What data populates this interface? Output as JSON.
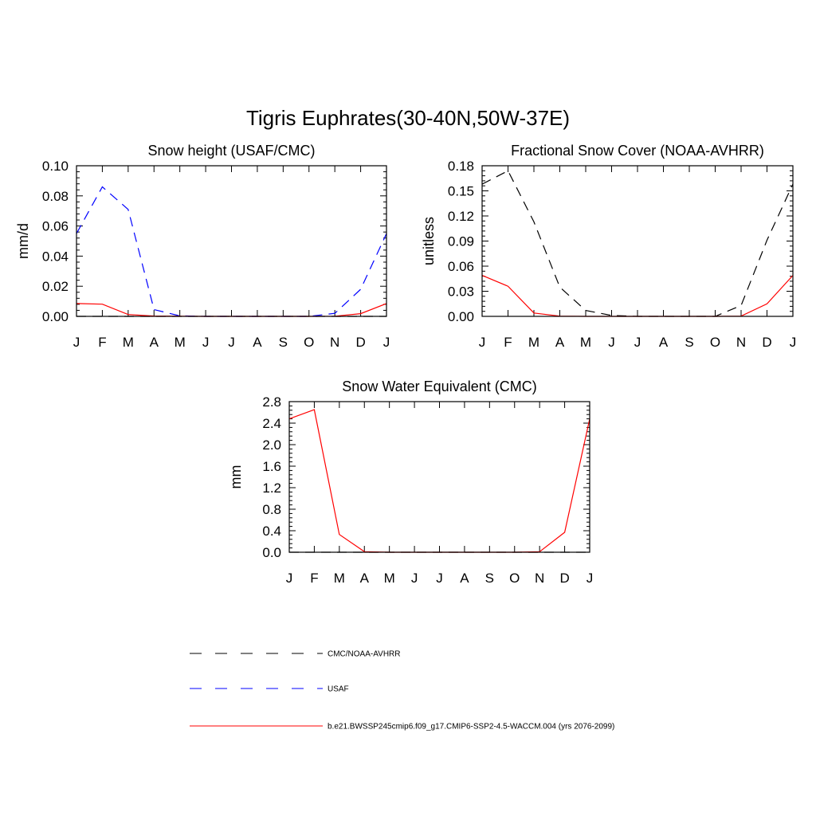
{
  "figure": {
    "title": "Tigris Euphrates(30-40N,50W-37E)"
  },
  "styles": {
    "CMC/NOAA-AVHRR": {
      "color": "#000000",
      "dash": "dashed"
    },
    "USAF": {
      "color": "#0000ff",
      "dash": "dashed"
    },
    "model": {
      "color": "#ff0000",
      "dash": "solid"
    }
  },
  "legend": {
    "placement": "bottom-center",
    "entries": [
      {
        "key": "CMC/NOAA-AVHRR",
        "label": "CMC/NOAA-AVHRR"
      },
      {
        "key": "USAF",
        "label": "USAF"
      },
      {
        "key": "model",
        "label": "b.e21.BWSSP245cmip6.f09_g17.CMIP6-SSP2-4.5-WACCM.004 (yrs 2076-2099)"
      }
    ]
  },
  "chart_data": [
    {
      "type": "line",
      "title": "Snow height (USAF/CMC)",
      "ylabel": "mm/d",
      "xlabel": "",
      "categories": [
        "J",
        "F",
        "M",
        "A",
        "M",
        "J",
        "J",
        "A",
        "S",
        "O",
        "N",
        "D",
        "J"
      ],
      "ylim": [
        0,
        0.1
      ],
      "yticks": [
        0,
        0.02,
        0.04,
        0.06,
        0.08,
        0.1
      ],
      "ytick_labels": [
        "0.00",
        "0.02",
        "0.04",
        "0.06",
        "0.08",
        "0.10"
      ],
      "grid": false,
      "series": [
        {
          "key": "CMC/NOAA-AVHRR",
          "values": [
            0,
            0,
            0,
            0,
            0,
            0,
            0,
            0,
            0,
            0,
            0,
            0,
            0
          ]
        },
        {
          "key": "USAF",
          "values": [
            0.055,
            0.086,
            0.071,
            0.0045,
            0.0003,
            0,
            0,
            0,
            0,
            0,
            0.002,
            0.018,
            0.055
          ]
        },
        {
          "key": "model",
          "values": [
            0.0085,
            0.0081,
            0.0012,
            0.0002,
            0.0001,
            0,
            0,
            0,
            0,
            0,
            0.0001,
            0.0018,
            0.0085
          ]
        }
      ]
    },
    {
      "type": "line",
      "title": "Fractional Snow Cover (NOAA-AVHRR)",
      "ylabel": "unitless",
      "xlabel": "",
      "categories": [
        "J",
        "F",
        "M",
        "A",
        "M",
        "J",
        "J",
        "A",
        "S",
        "O",
        "N",
        "D",
        "J"
      ],
      "ylim": [
        0,
        0.18
      ],
      "yticks": [
        0,
        0.03,
        0.06,
        0.09,
        0.12,
        0.15,
        0.18
      ],
      "ytick_labels": [
        "0.00",
        "0.03",
        "0.06",
        "0.09",
        "0.12",
        "0.15",
        "0.18"
      ],
      "grid": false,
      "series": [
        {
          "key": "CMC/NOAA-AVHRR",
          "values": [
            0.158,
            0.174,
            0.113,
            0.035,
            0.007,
            0.001,
            0,
            0,
            0,
            0,
            0.013,
            0.091,
            0.158
          ]
        },
        {
          "key": "model",
          "values": [
            0.049,
            0.036,
            0.004,
            0.0003,
            0,
            0,
            0,
            0,
            0,
            0,
            0.0003,
            0.015,
            0.049
          ]
        }
      ]
    },
    {
      "type": "line",
      "title": "Snow Water Equivalent (CMC)",
      "ylabel": "mm",
      "xlabel": "",
      "categories": [
        "J",
        "F",
        "M",
        "A",
        "M",
        "J",
        "J",
        "A",
        "S",
        "O",
        "N",
        "D",
        "J"
      ],
      "ylim": [
        0,
        2.8
      ],
      "yticks": [
        0,
        0.4,
        0.8,
        1.2,
        1.6,
        2.0,
        2.4,
        2.8
      ],
      "ytick_labels": [
        "0.0",
        "0.4",
        "0.8",
        "1.2",
        "1.6",
        "2.0",
        "2.4",
        "2.8"
      ],
      "grid": false,
      "series": [
        {
          "key": "CMC/NOAA-AVHRR",
          "values": [
            0,
            0,
            0,
            0,
            0,
            0,
            0,
            0,
            0,
            0,
            0,
            0,
            0
          ]
        },
        {
          "key": "model",
          "values": [
            2.48,
            2.65,
            0.33,
            0.01,
            0,
            0,
            0,
            0,
            0,
            0,
            0.01,
            0.37,
            2.48
          ]
        }
      ]
    }
  ]
}
